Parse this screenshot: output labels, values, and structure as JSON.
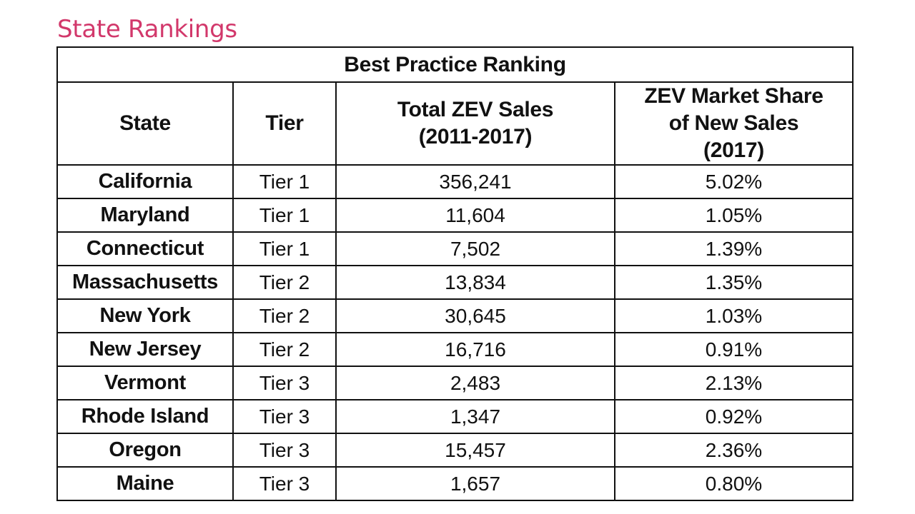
{
  "page": {
    "title": "State Rankings",
    "title_color": "#d2386b"
  },
  "table": {
    "banner": "Best Practice Ranking",
    "headers": {
      "state": "State",
      "tier": "Tier",
      "sales_line1": "Total ZEV Sales",
      "sales_line2": "(2011-2017)",
      "share_line1": "ZEV Market Share",
      "share_line2": "of New Sales",
      "share_line3": "(2017)"
    },
    "rows": [
      {
        "state": "California",
        "tier": "Tier 1",
        "sales": "356,241",
        "share": "5.02%"
      },
      {
        "state": "Maryland",
        "tier": "Tier 1",
        "sales": "11,604",
        "share": "1.05%"
      },
      {
        "state": "Connecticut",
        "tier": "Tier 1",
        "sales": "7,502",
        "share": "1.39%"
      },
      {
        "state": "Massachusetts",
        "tier": "Tier 2",
        "sales": "13,834",
        "share": "1.35%"
      },
      {
        "state": "New York",
        "tier": "Tier 2",
        "sales": "30,645",
        "share": "1.03%"
      },
      {
        "state": "New Jersey",
        "tier": "Tier 2",
        "sales": "16,716",
        "share": "0.91%"
      },
      {
        "state": "Vermont",
        "tier": "Tier 3",
        "sales": "2,483",
        "share": "2.13%"
      },
      {
        "state": "Rhode Island",
        "tier": "Tier 3",
        "sales": "1,347",
        "share": "0.92%"
      },
      {
        "state": "Oregon",
        "tier": "Tier 3",
        "sales": "15,457",
        "share": "2.36%"
      },
      {
        "state": "Maine",
        "tier": "Tier 3",
        "sales": "1,657",
        "share": "0.80%"
      }
    ]
  }
}
